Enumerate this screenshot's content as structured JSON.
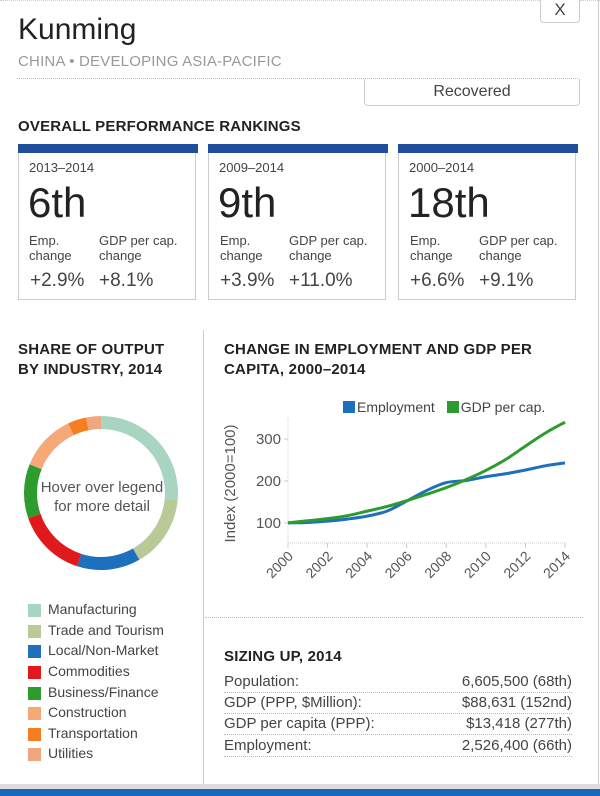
{
  "window": {
    "close_label": "X"
  },
  "header": {
    "city": "Kunming",
    "region": "CHINA • DEVELOPING ASIA-PACIFIC",
    "status": "Recovered"
  },
  "rankings": {
    "title": "OVERALL PERFORMANCE RANKINGS",
    "emp_label_1": "Emp.",
    "emp_label_2": "change",
    "gdp_label_1": "GDP per cap.",
    "gdp_label_2": "change",
    "cards": [
      {
        "period": "2013–2014",
        "rank": "6th",
        "emp_change": "+2.9%",
        "gdp_change": "+8.1%"
      },
      {
        "period": "2009–2014",
        "rank": "9th",
        "emp_change": "+3.9%",
        "gdp_change": "+11.0%"
      },
      {
        "period": "2000–2014",
        "rank": "18th",
        "emp_change": "+6.6%",
        "gdp_change": "+9.1%"
      }
    ],
    "accent_color": "#1f4f9c"
  },
  "industry": {
    "title_line1": "SHARE OF OUTPUT",
    "title_line2": "BY INDUSTRY, 2014",
    "center_line1": "Hover over legend",
    "center_line2": "for more detail",
    "legend": [
      {
        "label": "Manufacturing",
        "color": "#a8d5c2"
      },
      {
        "label": "Trade and Tourism",
        "color": "#b9c998"
      },
      {
        "label": "Local/Non-Market",
        "color": "#1f6fbf"
      },
      {
        "label": "Commodities",
        "color": "#e0191c"
      },
      {
        "label": "Business/Finance",
        "color": "#2e9b2e"
      },
      {
        "label": "Construction",
        "color": "#f7a878"
      },
      {
        "label": "Transportation",
        "color": "#f57f20"
      },
      {
        "label": "Utilities",
        "color": "#f0a67e"
      }
    ]
  },
  "trend": {
    "title_line1": "CHANGE IN EMPLOYMENT AND GDP PER",
    "title_line2": "CAPITA, 2000–2014"
  },
  "sizing": {
    "title": "SIZING UP, 2014",
    "rows": [
      {
        "label": "Population:",
        "value": "6,605,500 (68th)"
      },
      {
        "label": "GDP (PPP, $Million):",
        "value": "$88,631 (152nd)"
      },
      {
        "label": "GDP per capita (PPP):",
        "value": "$13,418 (277th)"
      },
      {
        "label": "Employment:",
        "value": "2,526,400 (66th)"
      }
    ]
  },
  "chart_data": [
    {
      "type": "pie",
      "title": "SHARE OF OUTPUT BY INDUSTRY, 2014",
      "categories": [
        "Manufacturing",
        "Trade and Tourism",
        "Local/Non-Market",
        "Commodities",
        "Business/Finance",
        "Construction",
        "Transportation",
        "Utilities"
      ],
      "values": [
        26.4,
        15.3,
        13.3,
        14.7,
        11.4,
        11.9,
        3.9,
        3.1
      ],
      "colors": [
        "#a8d5c2",
        "#b9c998",
        "#1f6fbf",
        "#e0191c",
        "#2e9b2e",
        "#f7a878",
        "#f57f20",
        "#f0a67e"
      ],
      "donut": true,
      "legend": "bottom"
    },
    {
      "type": "line",
      "title": "CHANGE IN EMPLOYMENT AND GDP PER CAPITA, 2000–2014",
      "xlabel": "",
      "ylabel": "Index (2000=100)",
      "x": [
        2000,
        2001,
        2002,
        2003,
        2004,
        2005,
        2006,
        2007,
        2008,
        2009,
        2010,
        2011,
        2012,
        2013,
        2014
      ],
      "xticks": [
        "2000",
        "2002",
        "2004",
        "2006",
        "2008",
        "2010",
        "2012",
        "2014"
      ],
      "yticks": [
        "100",
        "200",
        "300"
      ],
      "ylim": [
        52,
        350
      ],
      "xlim": [
        2000,
        2014
      ],
      "legend": "top-right",
      "series": [
        {
          "name": "Employment",
          "color": "#1f6fbf",
          "values": [
            100,
            101,
            104,
            109,
            116,
            128,
            152,
            177,
            196,
            201,
            210,
            217,
            226,
            236,
            243
          ]
        },
        {
          "name": "GDP per cap.",
          "color": "#2e9b2e",
          "values": [
            100,
            105,
            110,
            117,
            128,
            139,
            153,
            168,
            184,
            203,
            225,
            251,
            283,
            314,
            340
          ]
        }
      ]
    }
  ]
}
